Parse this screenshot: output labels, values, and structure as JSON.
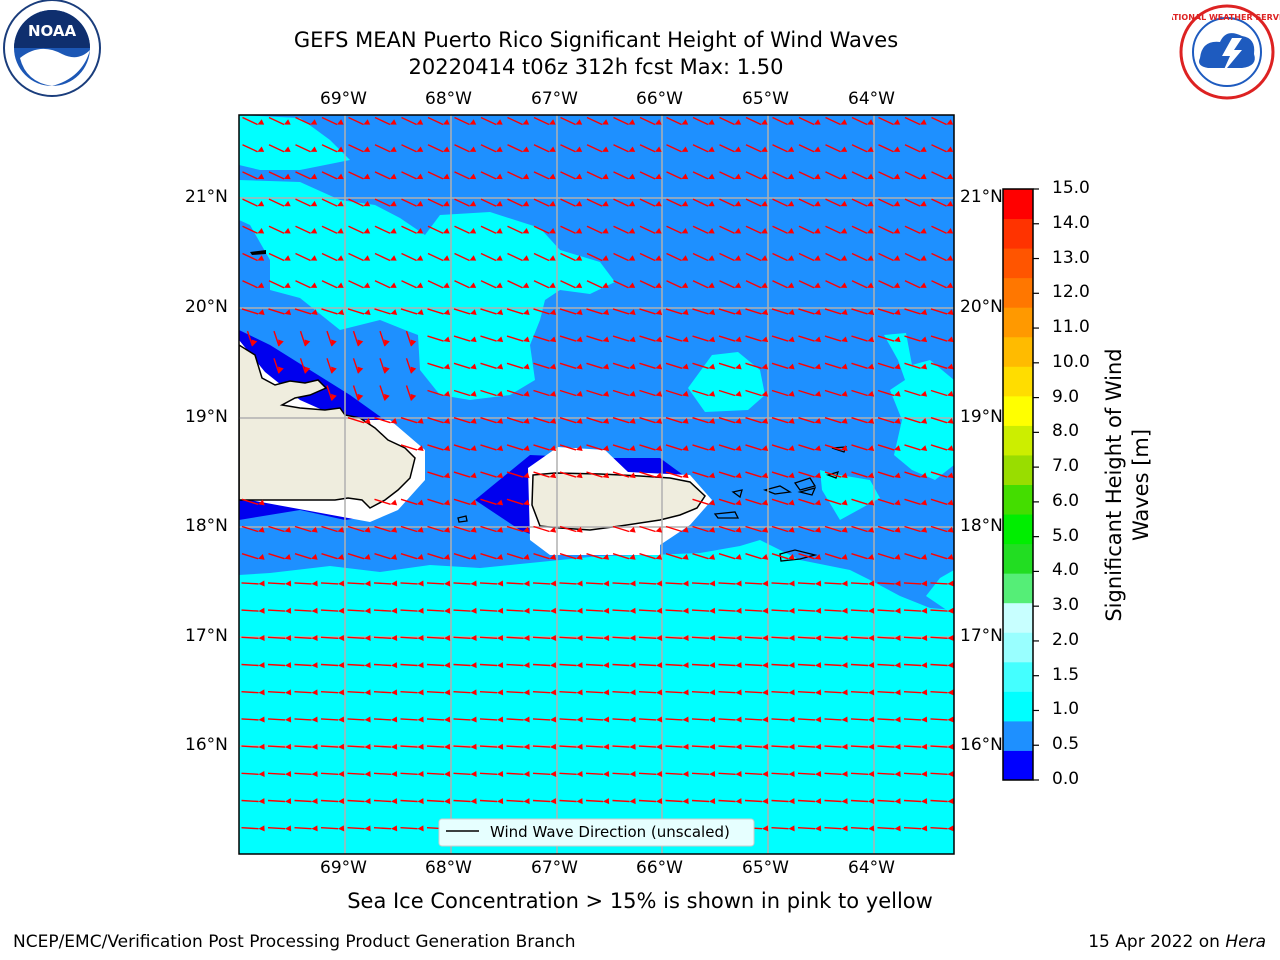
{
  "title": {
    "line1": "GEFS MEAN Puerto Rico Significant Height of Wind Waves",
    "line2": "20220414 t06z 312h fcst   Max: 1.50"
  },
  "map": {
    "lon_labels": [
      "69°W",
      "68°W",
      "67°W",
      "66°W",
      "65°W",
      "64°W"
    ],
    "lat_labels": [
      "21°N",
      "20°N",
      "19°N",
      "18°N",
      "17°N",
      "16°N"
    ],
    "legend": "Wind Wave Direction (unscaled)",
    "colors": {
      "ocean_light": "#00ffff",
      "ocean_mid": "#1e90ff",
      "ocean_low": "#0000ee",
      "land": "#efedde",
      "arrow": "#ff0000",
      "grid": "#b0b0b0"
    }
  },
  "colorbar": {
    "title_line1": "Significant Height of Wind",
    "title_line2": "Waves [m]",
    "ticks": [
      "15.0",
      "14.0",
      "13.0",
      "12.0",
      "11.0",
      "10.0",
      "9.0",
      "8.0",
      "7.0",
      "6.0",
      "5.0",
      "4.0",
      "3.0",
      "2.0",
      "1.5",
      "1.0",
      "0.5",
      "0.0"
    ],
    "colors": [
      "#0000ff",
      "#1e90ff",
      "#00ffff",
      "#44ffff",
      "#99ffff",
      "#c8ffff",
      "#55ee77",
      "#22dd22",
      "#00ee00",
      "#44dd00",
      "#99dd00",
      "#ccee00",
      "#ffff00",
      "#ffdd00",
      "#ffbb00",
      "#ff9900",
      "#ff7700",
      "#ff5500",
      "#ff3300",
      "#ff0000"
    ]
  },
  "notes": {
    "ice": "Sea Ice Concentration > 15% is shown in pink to yellow",
    "footer_left": "NCEP/EMC/Verification Post Processing Product Generation Branch",
    "footer_right_prefix": "15 Apr 2022 on ",
    "footer_right_host": "Hera"
  },
  "logos": {
    "noaa_text": "NOAA",
    "nws_text": "NATIONAL WEATHER SERVICE"
  }
}
